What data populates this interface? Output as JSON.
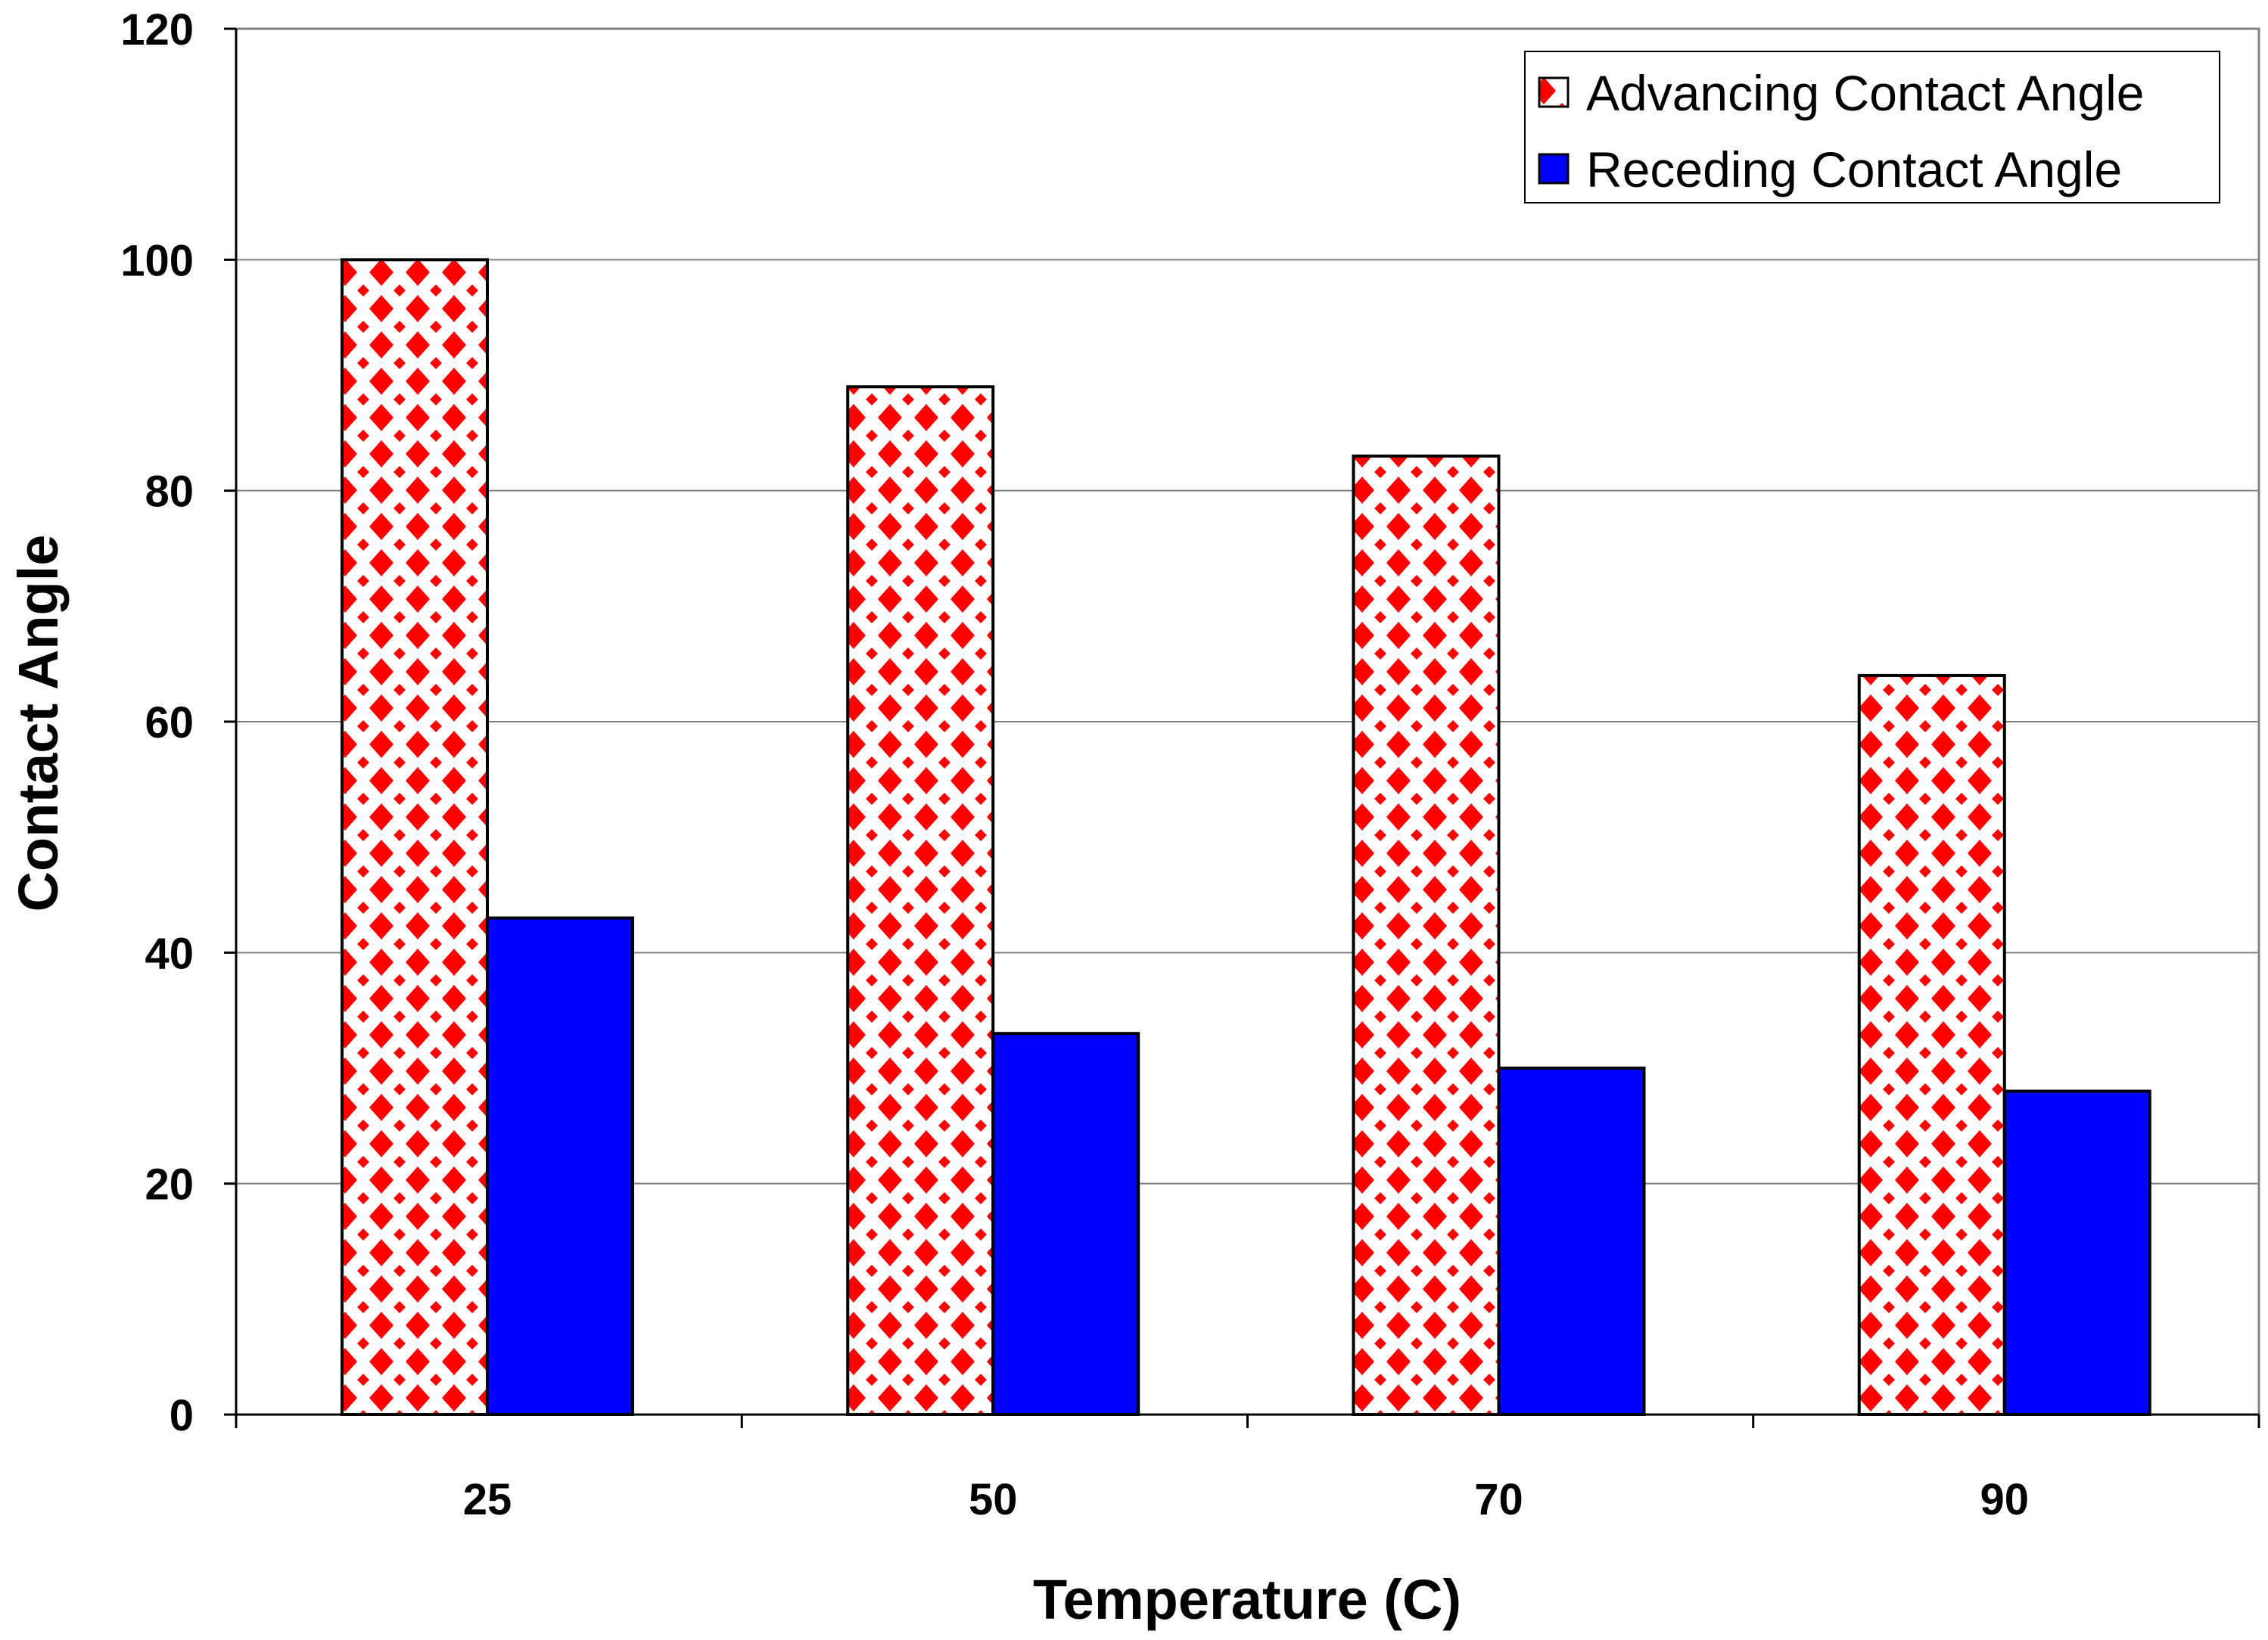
{
  "chart_data": {
    "type": "bar",
    "title": "",
    "xlabel": "Temperature (C)",
    "ylabel": "Contact Angle",
    "categories": [
      "25",
      "50",
      "70",
      "90"
    ],
    "series": [
      {
        "name": "Advancing Contact Angle",
        "values": [
          100,
          89,
          83,
          64
        ],
        "color": "#ff0000",
        "pattern": "red-diamond-dots"
      },
      {
        "name": "Receding Contact Angle",
        "values": [
          43,
          33,
          30,
          28
        ],
        "color": "#0000ff"
      }
    ],
    "ylim": [
      0,
      120
    ],
    "yticks": [
      0,
      20,
      40,
      60,
      80,
      100,
      120
    ],
    "ytick_labels": [
      "0",
      "20",
      "40",
      "60",
      "80",
      "100",
      "120"
    ],
    "grid": true,
    "legend_position": "top-right"
  }
}
